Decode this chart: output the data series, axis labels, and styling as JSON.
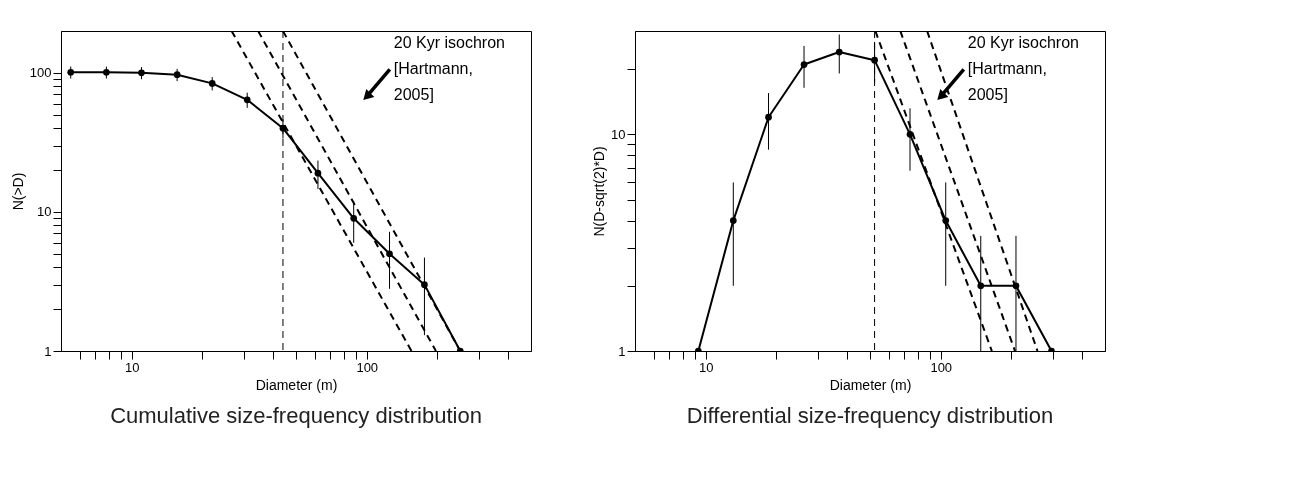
{
  "chart_data": [
    {
      "type": "line",
      "title": "Cumulative  size-frequency distribution",
      "xlabel": "Diameter (m)",
      "ylabel": "N(>D)",
      "log": "xy",
      "grid": false,
      "xlim": [
        5,
        500
      ],
      "ylim": [
        1,
        200
      ],
      "xticks": [
        {
          "value": 6,
          "label": null
        },
        {
          "value": 7,
          "label": null
        },
        {
          "value": 8,
          "label": null
        },
        {
          "value": 9,
          "label": null
        },
        10,
        {
          "value": 20,
          "label": null
        },
        {
          "value": 30,
          "label": null
        },
        {
          "value": 40,
          "label": null
        },
        {
          "value": 50,
          "label": null
        },
        {
          "value": 60,
          "label": null
        },
        {
          "value": 70,
          "label": null
        },
        {
          "value": 80,
          "label": null
        },
        {
          "value": 90,
          "label": null
        },
        100,
        {
          "value": 200,
          "label": null
        },
        {
          "value": 300,
          "label": null
        },
        {
          "value": 400,
          "label": null
        }
      ],
      "yticks": [
        1,
        {
          "value": 2,
          "label": null
        },
        {
          "value": 3,
          "label": null
        },
        {
          "value": 4,
          "label": null
        },
        {
          "value": 5,
          "label": null
        },
        {
          "value": 6,
          "label": null
        },
        {
          "value": 7,
          "label": null
        },
        {
          "value": 8,
          "label": null
        },
        {
          "value": 9,
          "label": null
        },
        10,
        {
          "value": 20,
          "label": null
        },
        {
          "value": 30,
          "label": null
        },
        {
          "value": 40,
          "label": null
        },
        {
          "value": 50,
          "label": null
        },
        {
          "value": 60,
          "label": null
        },
        {
          "value": 70,
          "label": null
        },
        {
          "value": 80,
          "label": null
        },
        {
          "value": 90,
          "label": null
        },
        100
      ],
      "series": [
        {
          "color": "#000000",
          "marker": "circle",
          "line_style": "solid",
          "x": [
            5.5,
            7.8,
            11,
            15.6,
            22,
            31,
            44,
            62,
            88,
            125,
            176,
            250
          ],
          "values": [
            101,
            101,
            100,
            97,
            84,
            64,
            40,
            19,
            9,
            5,
            3,
            1
          ],
          "errors": [
            10,
            10,
            10,
            9.8,
            9.2,
            8,
            6.3,
            4.4,
            3,
            2.2,
            1.7,
            null
          ]
        },
        {
          "type": "line",
          "color": "#000000",
          "line_style": "dashed",
          "x": [
            26.6,
            155
          ],
          "values": [
            200,
            1
          ]
        },
        {
          "type": "line",
          "color": "#000000",
          "line_style": "dashed",
          "x": [
            34.5,
            197
          ],
          "values": [
            200,
            1
          ]
        },
        {
          "type": "line",
          "color": "#000000",
          "line_style": "dashed",
          "x": [
            44,
            250
          ],
          "values": [
            200,
            1
          ]
        }
      ],
      "ref_lines": [
        {
          "axis": "x",
          "value": 44,
          "color": "#000000",
          "line_style": "dashed"
        }
      ],
      "annotations": [
        "20 Kyr isochron\n[Hartmann,\n2005]"
      ]
    },
    {
      "type": "line",
      "title": "Differential size-frequency distribution",
      "xlabel": "Diameter (m)",
      "ylabel": "N(D-sqrt(2)*D)",
      "log": "xy",
      "grid": false,
      "xlim": [
        5,
        500
      ],
      "ylim": [
        1,
        30
      ],
      "xticks": [
        {
          "value": 6,
          "label": null
        },
        {
          "value": 7,
          "label": null
        },
        {
          "value": 8,
          "label": null
        },
        {
          "value": 9,
          "label": null
        },
        10,
        {
          "value": 20,
          "label": null
        },
        {
          "value": 30,
          "label": null
        },
        {
          "value": 40,
          "label": null
        },
        {
          "value": 50,
          "label": null
        },
        {
          "value": 60,
          "label": null
        },
        {
          "value": 70,
          "label": null
        },
        {
          "value": 80,
          "label": null
        },
        {
          "value": 90,
          "label": null
        },
        100,
        {
          "value": 200,
          "label": null
        },
        {
          "value": 300,
          "label": null
        },
        {
          "value": 400,
          "label": null
        }
      ],
      "yticks": [
        1,
        {
          "value": 2,
          "label": null
        },
        {
          "value": 3,
          "label": null
        },
        {
          "value": 4,
          "label": null
        },
        {
          "value": 5,
          "label": null
        },
        {
          "value": 6,
          "label": null
        },
        {
          "value": 7,
          "label": null
        },
        {
          "value": 8,
          "label": null
        },
        {
          "value": 9,
          "label": null
        },
        10,
        {
          "value": 20,
          "label": null
        }
      ],
      "series": [
        {
          "color": "#000000",
          "marker": "circle",
          "line_style": "solid",
          "x": [
            9.3,
            13.1,
            18.5,
            26.2,
            37,
            52.3,
            74,
            105,
            148,
            209,
            296
          ],
          "values": [
            1,
            4,
            12,
            21,
            24,
            22,
            10,
            4,
            2,
            2,
            1
          ],
          "errors": [
            null,
            2,
            3.5,
            4.6,
            4.9,
            4.7,
            3.2,
            2,
            [
              1,
              3.4
            ],
            [
              1,
              3.4
            ],
            null
          ]
        },
        {
          "type": "line",
          "color": "#000000",
          "line_style": "dashed",
          "x": [
            52.7,
            165
          ],
          "values": [
            30,
            1
          ]
        },
        {
          "type": "line",
          "color": "#000000",
          "line_style": "dashed",
          "x": [
            67.3,
            207
          ],
          "values": [
            30,
            1
          ]
        },
        {
          "type": "line",
          "color": "#000000",
          "line_style": "dashed",
          "x": [
            87.5,
            258
          ],
          "values": [
            30,
            1
          ]
        }
      ],
      "ref_lines": [
        {
          "axis": "x",
          "value": 52.3,
          "color": "#000000",
          "line_style": "dashed"
        }
      ],
      "annotations": [
        "20 Kyr isochron\n[Hartmann,\n2005]"
      ]
    }
  ]
}
